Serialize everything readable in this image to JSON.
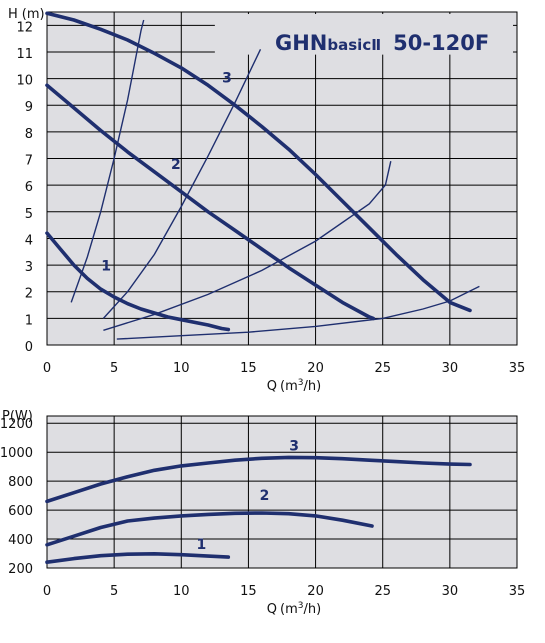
{
  "colors": {
    "plot_bg": "#dedee2",
    "grid": "#000000",
    "curve": "#1f2f6f"
  },
  "chart_data": [
    {
      "type": "line",
      "title": {
        "main": "GHN",
        "sub": "basicⅡ",
        "model": "50-120F"
      },
      "ylabel": {
        "main": "H",
        "unit": "(m)"
      },
      "xlabel": {
        "main": "Q",
        "unit_open": "(m",
        "unit_sup": "3",
        "unit_close": "/h)"
      },
      "xlim": [
        0,
        35
      ],
      "ylim": [
        0,
        12.5
      ],
      "x_ticks": [
        "0",
        "5",
        "10",
        "15",
        "20",
        "25",
        "30",
        "35"
      ],
      "y_ticks": [
        "0",
        "1",
        "2",
        "3",
        "4",
        "5",
        "6",
        "7",
        "8",
        "9",
        "10",
        "11",
        "12"
      ],
      "grid": true,
      "series": [
        {
          "name": "1",
          "label_at": [
            4.4,
            2.8
          ],
          "points": [
            [
              0,
              4.2
            ],
            [
              1,
              3.6
            ],
            [
              2,
              3.0
            ],
            [
              3,
              2.5
            ],
            [
              4,
              2.1
            ],
            [
              5,
              1.8
            ],
            [
              6,
              1.55
            ],
            [
              7,
              1.35
            ],
            [
              8,
              1.2
            ],
            [
              9,
              1.05
            ],
            [
              10,
              0.95
            ],
            [
              11,
              0.85
            ],
            [
              12,
              0.75
            ],
            [
              13,
              0.62
            ],
            [
              13.5,
              0.58
            ]
          ]
        },
        {
          "name": "2",
          "label_at": [
            9.6,
            6.6
          ],
          "points": [
            [
              0,
              9.75
            ],
            [
              2,
              8.9
            ],
            [
              4,
              8.05
            ],
            [
              6,
              7.25
            ],
            [
              8,
              6.5
            ],
            [
              10,
              5.75
            ],
            [
              12,
              5.0
            ],
            [
              14,
              4.3
            ],
            [
              16,
              3.6
            ],
            [
              18,
              2.9
            ],
            [
              20,
              2.25
            ],
            [
              22,
              1.6
            ],
            [
              24,
              1.05
            ],
            [
              24.3,
              1.0
            ]
          ]
        },
        {
          "name": "3",
          "label_at": [
            13.4,
            9.85
          ],
          "points": [
            [
              0,
              12.45
            ],
            [
              2,
              12.2
            ],
            [
              4,
              11.85
            ],
            [
              6,
              11.45
            ],
            [
              8,
              10.95
            ],
            [
              10,
              10.4
            ],
            [
              12,
              9.75
            ],
            [
              14,
              9.0
            ],
            [
              16,
              8.2
            ],
            [
              18,
              7.35
            ],
            [
              20,
              6.4
            ],
            [
              22,
              5.4
            ],
            [
              24,
              4.4
            ],
            [
              26,
              3.4
            ],
            [
              28,
              2.45
            ],
            [
              30,
              1.6
            ],
            [
              31.5,
              1.3
            ]
          ]
        }
      ],
      "system_curves": [
        {
          "points": [
            [
              1.8,
              1.6
            ],
            [
              3,
              3.3
            ],
            [
              4,
              5.0
            ],
            [
              5,
              7.0
            ],
            [
              6,
              9.2
            ],
            [
              7,
              11.8
            ],
            [
              7.2,
              12.2
            ]
          ]
        },
        {
          "points": [
            [
              4.2,
              1.0
            ],
            [
              6,
              2.0
            ],
            [
              8,
              3.4
            ],
            [
              10,
              5.2
            ],
            [
              12,
              7.1
            ],
            [
              14,
              9.1
            ],
            [
              15.9,
              11.1
            ]
          ]
        },
        {
          "points": [
            [
              4.2,
              0.55
            ],
            [
              8,
              1.15
            ],
            [
              12,
              1.9
            ],
            [
              16,
              2.8
            ],
            [
              20,
              3.9
            ],
            [
              24,
              5.3
            ],
            [
              25.1,
              5.95
            ],
            [
              25.2,
              6.0
            ],
            [
              25.6,
              6.9
            ]
          ]
        },
        {
          "points": [
            [
              5.2,
              0.22
            ],
            [
              10,
              0.35
            ],
            [
              15,
              0.48
            ],
            [
              20,
              0.7
            ],
            [
              25,
              1.0
            ],
            [
              28,
              1.35
            ],
            [
              30,
              1.65
            ],
            [
              32.2,
              2.2
            ]
          ]
        }
      ]
    },
    {
      "type": "line",
      "ylabel": {
        "main": "P",
        "unit": "(W)"
      },
      "xlabel": {
        "main": "Q",
        "unit_open": "(m",
        "unit_sup": "3",
        "unit_close": "/h)"
      },
      "xlim": [
        0,
        35
      ],
      "ylim": [
        200,
        1250
      ],
      "x_ticks": [
        "0",
        "5",
        "10",
        "15",
        "20",
        "25",
        "30",
        "35"
      ],
      "y_ticks": [
        "200",
        "400",
        "600",
        "800",
        "1000",
        "1200"
      ],
      "grid": true,
      "series": [
        {
          "name": "1",
          "label_at": [
            11.5,
            330
          ],
          "points": [
            [
              0,
              240
            ],
            [
              2,
              265
            ],
            [
              4,
              285
            ],
            [
              6,
              295
            ],
            [
              8,
              298
            ],
            [
              10,
              292
            ],
            [
              12,
              282
            ],
            [
              13.5,
              275
            ]
          ]
        },
        {
          "name": "2",
          "label_at": [
            16.2,
            670
          ],
          "points": [
            [
              0,
              360
            ],
            [
              2,
              420
            ],
            [
              4,
              480
            ],
            [
              6,
              525
            ],
            [
              8,
              545
            ],
            [
              10,
              560
            ],
            [
              12,
              570
            ],
            [
              14,
              578
            ],
            [
              16,
              580
            ],
            [
              18,
              575
            ],
            [
              20,
              560
            ],
            [
              22,
              530
            ],
            [
              24.2,
              490
            ]
          ]
        },
        {
          "name": "3",
          "label_at": [
            18.4,
            1010
          ],
          "points": [
            [
              0,
              660
            ],
            [
              2,
              720
            ],
            [
              4,
              780
            ],
            [
              6,
              830
            ],
            [
              8,
              875
            ],
            [
              10,
              905
            ],
            [
              12,
              925
            ],
            [
              14,
              945
            ],
            [
              16,
              958
            ],
            [
              18,
              964
            ],
            [
              20,
              962
            ],
            [
              22,
              955
            ],
            [
              24,
              945
            ],
            [
              26,
              935
            ],
            [
              28,
              925
            ],
            [
              30,
              918
            ],
            [
              31.5,
              915
            ]
          ]
        }
      ]
    }
  ]
}
